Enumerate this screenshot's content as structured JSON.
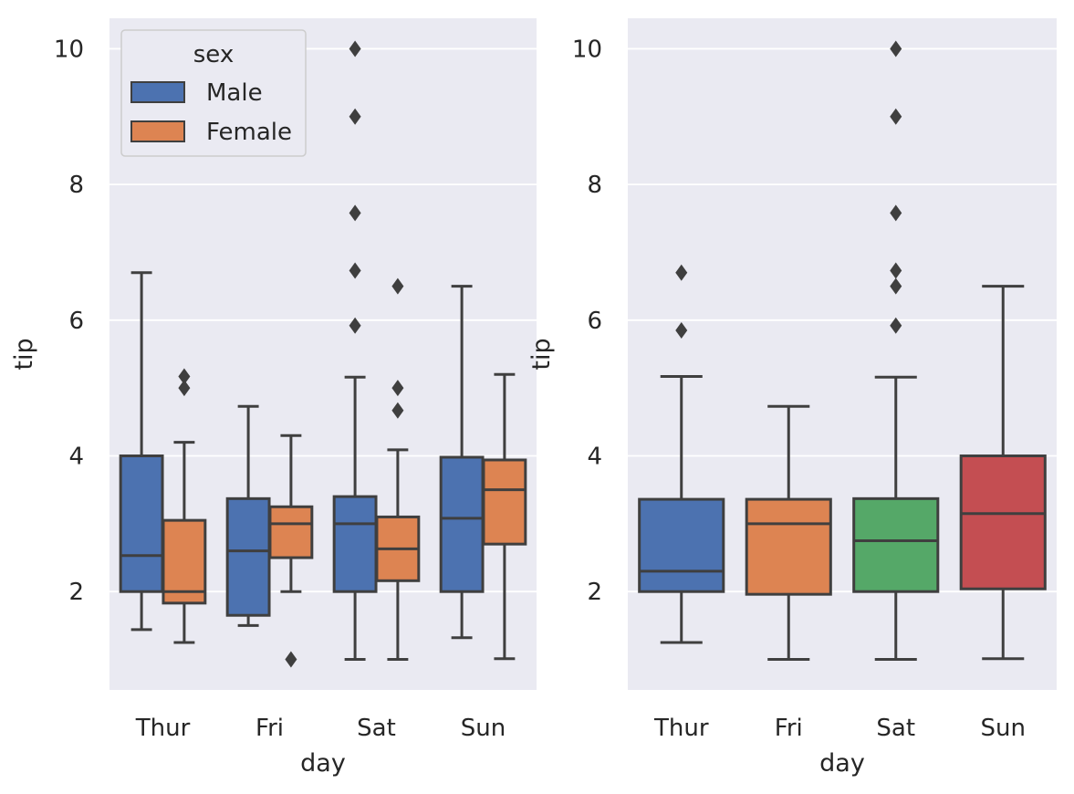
{
  "chart_data": [
    {
      "type": "box",
      "xlabel": "day",
      "ylabel": "tip",
      "ylim": [
        0.55,
        10.45
      ],
      "yticks": [
        "2",
        "4",
        "6",
        "8",
        "10"
      ],
      "categories": [
        "Thur",
        "Fri",
        "Sat",
        "Sun"
      ],
      "grid": true,
      "legend": {
        "title": "sex",
        "placement": "top-left",
        "entries": [
          "Male",
          "Female"
        ]
      },
      "series": [
        {
          "name": "Male",
          "color": "#4C72B0",
          "boxes": [
            {
              "category": "Thur",
              "whisker_low": 1.44,
              "q1": 2.0,
              "median": 2.53,
              "q3": 4.0,
              "whisker_high": 6.7,
              "outliers": []
            },
            {
              "category": "Fri",
              "whisker_low": 1.5,
              "q1": 1.65,
              "median": 2.6,
              "q3": 3.37,
              "whisker_high": 4.73,
              "outliers": []
            },
            {
              "category": "Sat",
              "whisker_low": 1.0,
              "q1": 2.0,
              "median": 3.0,
              "q3": 3.4,
              "whisker_high": 5.16,
              "outliers": [
                5.92,
                6.73,
                7.58,
                9.0,
                10.0
              ]
            },
            {
              "category": "Sun",
              "whisker_low": 1.32,
              "q1": 2.0,
              "median": 3.08,
              "q3": 3.98,
              "whisker_high": 6.5,
              "outliers": []
            }
          ]
        },
        {
          "name": "Female",
          "color": "#DD8452",
          "boxes": [
            {
              "category": "Thur",
              "whisker_low": 1.25,
              "q1": 1.83,
              "median": 2.0,
              "q3": 3.05,
              "whisker_high": 4.2,
              "outliers": [
                5.0,
                5.17
              ]
            },
            {
              "category": "Fri",
              "whisker_low": 2.0,
              "q1": 2.5,
              "median": 3.0,
              "q3": 3.25,
              "whisker_high": 4.3,
              "outliers": [
                1.0
              ]
            },
            {
              "category": "Sat",
              "whisker_low": 1.0,
              "q1": 2.16,
              "median": 2.63,
              "q3": 3.1,
              "whisker_high": 4.09,
              "outliers": [
                4.67,
                5.0,
                6.5
              ]
            },
            {
              "category": "Sun",
              "whisker_low": 1.01,
              "q1": 2.7,
              "median": 3.5,
              "q3": 3.94,
              "whisker_high": 5.2,
              "outliers": []
            }
          ]
        }
      ]
    },
    {
      "type": "box",
      "xlabel": "day",
      "ylabel": "tip",
      "ylim": [
        0.55,
        10.45
      ],
      "yticks": [
        "2",
        "4",
        "6",
        "8",
        "10"
      ],
      "categories": [
        "Thur",
        "Fri",
        "Sat",
        "Sun"
      ],
      "grid": true,
      "series": [
        {
          "boxes": [
            {
              "category": "Thur",
              "color": "#4C72B0",
              "whisker_low": 1.25,
              "q1": 2.0,
              "median": 2.3,
              "q3": 3.36,
              "whisker_high": 5.17,
              "outliers": [
                5.85,
                6.7
              ]
            },
            {
              "category": "Fri",
              "color": "#DD8452",
              "whisker_low": 1.0,
              "q1": 1.96,
              "median": 3.0,
              "q3": 3.36,
              "whisker_high": 4.73,
              "outliers": []
            },
            {
              "category": "Sat",
              "color": "#55A868",
              "whisker_low": 1.0,
              "q1": 2.0,
              "median": 2.75,
              "q3": 3.37,
              "whisker_high": 5.16,
              "outliers": [
                5.92,
                6.5,
                6.73,
                7.58,
                9.0,
                10.0
              ]
            },
            {
              "category": "Sun",
              "color": "#C44E52",
              "whisker_low": 1.01,
              "q1": 2.04,
              "median": 3.15,
              "q3": 4.0,
              "whisker_high": 6.5,
              "outliers": []
            }
          ]
        }
      ]
    }
  ]
}
